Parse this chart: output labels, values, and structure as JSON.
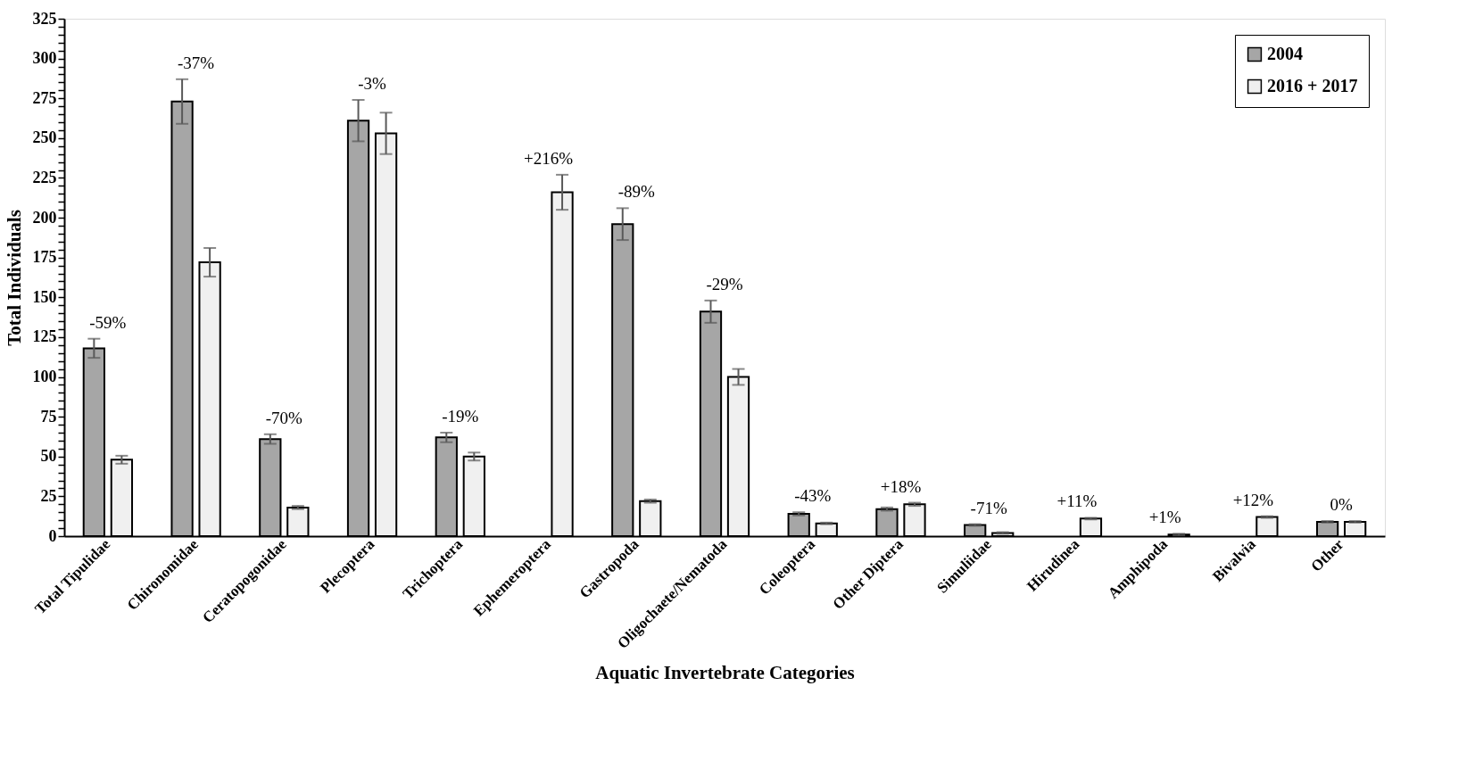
{
  "chart_data": {
    "type": "bar",
    "xlabel": "Aquatic Invertebrate Categories",
    "ylabel": "Total Individuals",
    "categories": [
      "Total Tipulidae",
      "Chironomidae",
      "Ceratopogonidae",
      "Plecoptera",
      "Trichoptera",
      "Ephemeroptera",
      "Gastropoda",
      "Oligochaete/Nematoda",
      "Coleoptera",
      "Other Diptera",
      "Simuliidae",
      "Hirudinea",
      "Amphipoda",
      "Bivalvia",
      "Other"
    ],
    "series": [
      {
        "name": "2004",
        "color": "#a6a6a6",
        "values": [
          118,
          273,
          61,
          261,
          62,
          null,
          196,
          141,
          14,
          17,
          7,
          null,
          null,
          null,
          9
        ],
        "errors": [
          6,
          14,
          3,
          13,
          3,
          null,
          10,
          7,
          1,
          1,
          0.5,
          null,
          null,
          null,
          0.5
        ]
      },
      {
        "name": "2016 + 2017",
        "color": "#f0f0f0",
        "values": [
          48,
          172,
          18,
          253,
          50,
          216,
          22,
          100,
          8,
          20,
          2,
          11,
          1,
          12,
          9
        ],
        "errors": [
          2.5,
          9,
          1,
          13,
          2.5,
          11,
          1,
          5,
          0.5,
          1,
          0.5,
          0.5,
          0.5,
          0.5,
          0.5
        ]
      }
    ],
    "ylim": [
      0,
      325
    ],
    "yticks": [
      0,
      {
        "value": 5,
        "label": null
      },
      {
        "value": 10,
        "label": null
      },
      {
        "value": 15,
        "label": null
      },
      {
        "value": 20,
        "label": null
      },
      25,
      {
        "value": 30,
        "label": null
      },
      {
        "value": 35,
        "label": null
      },
      {
        "value": 40,
        "label": null
      },
      {
        "value": 45,
        "label": null
      },
      50,
      {
        "value": 55,
        "label": null
      },
      {
        "value": 60,
        "label": null
      },
      {
        "value": 65,
        "label": null
      },
      {
        "value": 70,
        "label": null
      },
      75,
      {
        "value": 80,
        "label": null
      },
      {
        "value": 85,
        "label": null
      },
      {
        "value": 90,
        "label": null
      },
      {
        "value": 95,
        "label": null
      },
      100,
      {
        "value": 105,
        "label": null
      },
      {
        "value": 110,
        "label": null
      },
      {
        "value": 115,
        "label": null
      },
      {
        "value": 120,
        "label": null
      },
      125,
      {
        "value": 130,
        "label": null
      },
      {
        "value": 135,
        "label": null
      },
      {
        "value": 140,
        "label": null
      },
      {
        "value": 145,
        "label": null
      },
      150,
      {
        "value": 155,
        "label": null
      },
      {
        "value": 160,
        "label": null
      },
      {
        "value": 165,
        "label": null
      },
      {
        "value": 170,
        "label": null
      },
      175,
      {
        "value": 180,
        "label": null
      },
      {
        "value": 185,
        "label": null
      },
      {
        "value": 190,
        "label": null
      },
      {
        "value": 195,
        "label": null
      },
      200,
      {
        "value": 205,
        "label": null
      },
      {
        "value": 210,
        "label": null
      },
      {
        "value": 215,
        "label": null
      },
      {
        "value": 220,
        "label": null
      },
      225,
      {
        "value": 230,
        "label": null
      },
      {
        "value": 235,
        "label": null
      },
      {
        "value": 240,
        "label": null
      },
      {
        "value": 245,
        "label": null
      },
      250,
      {
        "value": 255,
        "label": null
      },
      {
        "value": 260,
        "label": null
      },
      {
        "value": 265,
        "label": null
      },
      {
        "value": 270,
        "label": null
      },
      275,
      {
        "value": 280,
        "label": null
      },
      {
        "value": 285,
        "label": null
      },
      {
        "value": 290,
        "label": null
      },
      {
        "value": 295,
        "label": null
      },
      300,
      {
        "value": 305,
        "label": null
      },
      {
        "value": 310,
        "label": null
      },
      {
        "value": 315,
        "label": null
      },
      {
        "value": 320,
        "label": null
      },
      325
    ],
    "grid": false,
    "legend": "top right",
    "annotations": [
      "-59%",
      "-37%",
      "-70%",
      "-3%",
      "-19%",
      "+216%",
      "-89%",
      "-29%",
      "-43%",
      "+18%",
      "-71%",
      "+11%",
      "+1%",
      "+12%",
      "0%"
    ]
  }
}
